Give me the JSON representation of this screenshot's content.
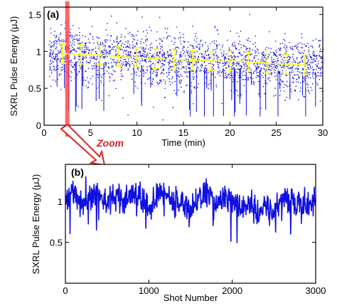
{
  "chart_data": [
    {
      "panel_label": "(a)",
      "type": "scatter",
      "xlabel": "Time (min)",
      "ylabel": "SXRL Pulse Energy (μJ)",
      "xlim": [
        0,
        30
      ],
      "ylim": [
        0,
        1.6
      ],
      "x_ticks": [
        0,
        5,
        10,
        15,
        20,
        25,
        30
      ],
      "y_ticks": [
        0,
        0.5,
        1,
        1.5
      ],
      "x_tick_labels": [
        "0",
        "5",
        "10",
        "15",
        "20",
        "25",
        "30"
      ],
      "y_tick_labels": [
        "0",
        "0.5",
        "1",
        "1.5"
      ],
      "grid": false,
      "scatter_color": "#1010e0",
      "scatter_points": 2200,
      "mean_line_color": "#ffff30",
      "errorbar_color": "#ffff30",
      "highlight_line": {
        "x": 2.5,
        "color": "#ff4040"
      },
      "series": [
        {
          "x": [
            2,
            4,
            6,
            8,
            10,
            12,
            14,
            16,
            18,
            20,
            22,
            24,
            26,
            28
          ],
          "mean": [
            0.97,
            0.96,
            0.95,
            0.93,
            0.92,
            0.9,
            0.89,
            0.88,
            0.87,
            0.87,
            0.86,
            0.84,
            0.83,
            0.82
          ],
          "error": [
            0.13,
            0.13,
            0.13,
            0.13,
            0.13,
            0.13,
            0.13,
            0.13,
            0.13,
            0.13,
            0.13,
            0.13,
            0.13,
            0.13
          ]
        }
      ]
    },
    {
      "panel_label": "(b)",
      "type": "line",
      "xlabel": "Shot Number",
      "ylabel": "SXRL Pulse Energy (μJ)",
      "xlim": [
        0,
        3000
      ],
      "ylim": [
        0,
        1.45
      ],
      "x_ticks": [
        0,
        1000,
        2000,
        3000
      ],
      "y_ticks": [
        0.5,
        1
      ],
      "x_tick_labels": [
        "0",
        "1000",
        "2000",
        "3000"
      ],
      "y_tick_labels": [
        "0.5",
        "1"
      ],
      "grid": false,
      "line_color": "#1010e0",
      "series": [
        {
          "x": [
            0,
            100,
            200,
            300,
            400,
            500,
            600,
            700,
            800,
            900,
            1000,
            1100,
            1200,
            1300,
            1400,
            1500,
            1600,
            1700,
            1800,
            1900,
            2000,
            2100,
            2200,
            2300,
            2400,
            2500,
            2600,
            2700,
            2800,
            2900,
            3000
          ],
          "y": [
            1.0,
            1.15,
            0.95,
            1.05,
            1.1,
            1.0,
            1.05,
            0.95,
            1.1,
            1.05,
            0.9,
            1.05,
            1.15,
            0.95,
            1.0,
            0.9,
            1.05,
            1.1,
            0.95,
            1.05,
            1.0,
            0.9,
            1.0,
            0.8,
            0.95,
            0.85,
            1.05,
            0.95,
            1.0,
            0.9,
            1.05
          ]
        }
      ]
    }
  ],
  "annotation": {
    "zoom_label": "Zoom",
    "arrow_color": "#e02020"
  }
}
